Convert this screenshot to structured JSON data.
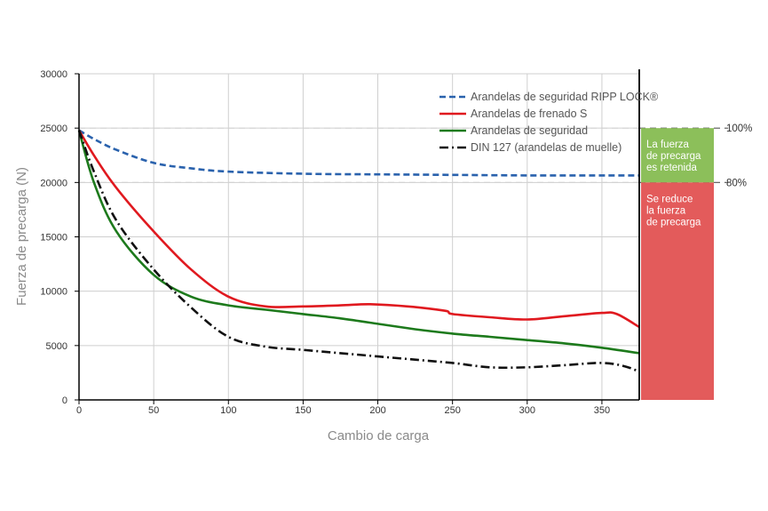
{
  "chart_data": {
    "type": "line",
    "xlabel": "Cambio de carga",
    "ylabel": "Fuerza de precarga (N)",
    "xlim": [
      0,
      375
    ],
    "ylim": [
      0,
      30000
    ],
    "x_ticks": [
      "0",
      "50",
      "100",
      "150",
      "200",
      "250",
      "300",
      "350"
    ],
    "y_ticks": [
      "0",
      "5000",
      "10000",
      "15000",
      "20000",
      "25000",
      "30000"
    ],
    "grid": true,
    "legend_position": "top-right",
    "series": [
      {
        "name": "Arandelas de seguridad  RIPP LOCK®",
        "color": "#2a62ad",
        "dash": "dashed",
        "x": [
          0,
          10,
          25,
          50,
          75,
          100,
          150,
          200,
          250,
          300,
          350,
          375
        ],
        "y": [
          24800,
          24000,
          23000,
          21800,
          21300,
          21000,
          20800,
          20750,
          20700,
          20650,
          20650,
          20650
        ]
      },
      {
        "name": "Arandelas de frenado S",
        "color": "#e0191f",
        "dash": "solid",
        "x": [
          0,
          10,
          25,
          50,
          75,
          100,
          125,
          150,
          175,
          195,
          220,
          245,
          250,
          275,
          300,
          325,
          350,
          360,
          375
        ],
        "y": [
          24800,
          22500,
          19500,
          15500,
          12000,
          9500,
          8600,
          8600,
          8700,
          8800,
          8600,
          8200,
          7900,
          7600,
          7400,
          7700,
          8000,
          7900,
          6700
        ]
      },
      {
        "name": "Arandelas de seguridad",
        "color": "#1d7a1c",
        "dash": "solid",
        "x": [
          0,
          10,
          25,
          50,
          75,
          100,
          125,
          150,
          175,
          200,
          225,
          250,
          275,
          300,
          325,
          350,
          375
        ],
        "y": [
          24800,
          20000,
          15500,
          11500,
          9500,
          8700,
          8300,
          7900,
          7500,
          7000,
          6500,
          6100,
          5800,
          5500,
          5200,
          4800,
          4300
        ]
      },
      {
        "name": "DIN 127 (arandelas de muelle)",
        "color": "#111111",
        "dash": "dashdot",
        "x": [
          0,
          10,
          25,
          50,
          75,
          100,
          125,
          150,
          175,
          200,
          225,
          250,
          275,
          300,
          325,
          350,
          365,
          375
        ],
        "y": [
          24800,
          21000,
          16500,
          12000,
          8500,
          5800,
          4900,
          4600,
          4300,
          4000,
          3700,
          3400,
          3000,
          3000,
          3200,
          3400,
          3100,
          2600
        ]
      }
    ],
    "reference_lines": [
      {
        "y": 25000,
        "label": "100%"
      },
      {
        "y": 20000,
        "label": "80%"
      }
    ],
    "zones": [
      {
        "from": 20000,
        "to": 25000,
        "color": "#8cbf5a",
        "lines": [
          "La fuerza",
          "de precarga",
          "es retenida"
        ]
      },
      {
        "from": 0,
        "to": 20000,
        "color": "#e35b5b",
        "lines": [
          "Se reduce",
          "la fuerza",
          "de precarga"
        ]
      }
    ]
  }
}
